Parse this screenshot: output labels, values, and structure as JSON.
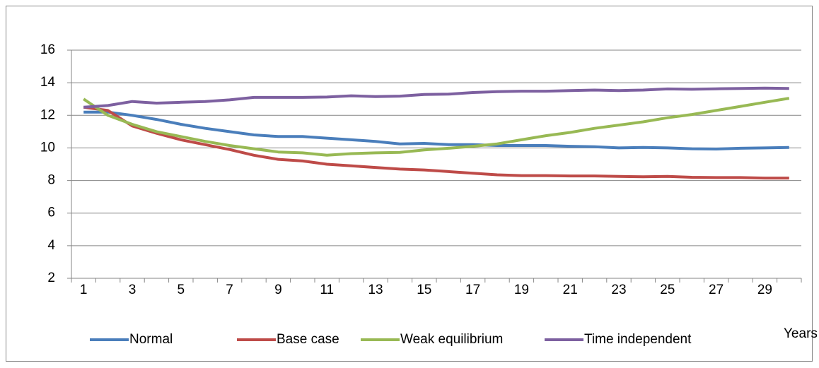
{
  "chart_data": {
    "type": "line",
    "x_label": "Years",
    "categories": [
      1,
      null,
      3,
      null,
      5,
      null,
      7,
      null,
      9,
      null,
      11,
      null,
      13,
      null,
      15,
      null,
      17,
      null,
      19,
      null,
      21,
      null,
      23,
      null,
      25,
      null,
      27,
      null,
      29,
      null
    ],
    "ylim": [
      2,
      16
    ],
    "yticks": [
      2,
      4,
      6,
      8,
      10,
      12,
      14,
      16
    ],
    "grid": true,
    "legend": "bottom",
    "series": [
      {
        "name": "Normal",
        "color": "#4a7ebb",
        "values": [
          12.2,
          12.2,
          12.0,
          11.75,
          11.45,
          11.2,
          11.0,
          10.8,
          10.7,
          10.7,
          10.6,
          10.5,
          10.4,
          10.25,
          10.28,
          10.2,
          10.2,
          10.15,
          10.15,
          10.15,
          10.1,
          10.07,
          10.0,
          10.03,
          10.0,
          9.95,
          9.93,
          9.98,
          10.0,
          10.03
        ]
      },
      {
        "name": "Base case",
        "color": "#be4b48",
        "values": [
          12.5,
          12.3,
          11.35,
          10.9,
          10.5,
          10.2,
          9.9,
          9.55,
          9.3,
          9.2,
          9.0,
          8.9,
          8.8,
          8.7,
          8.65,
          8.55,
          8.45,
          8.35,
          8.3,
          8.3,
          8.28,
          8.28,
          8.25,
          8.23,
          8.25,
          8.2,
          8.18,
          8.18,
          8.15,
          8.15
        ]
      },
      {
        "name": "Weak equilibrium",
        "color": "#98b954",
        "values": [
          13.0,
          12.0,
          11.45,
          11.0,
          10.7,
          10.4,
          10.15,
          9.95,
          9.75,
          9.7,
          9.55,
          9.65,
          9.7,
          9.73,
          9.88,
          9.98,
          10.1,
          10.25,
          10.5,
          10.75,
          10.95,
          11.2,
          11.4,
          11.6,
          11.85,
          12.05,
          12.3,
          12.55,
          12.8,
          13.05
        ]
      },
      {
        "name": "Time independent",
        "color": "#7d60a0",
        "values": [
          12.5,
          12.6,
          12.85,
          12.75,
          12.8,
          12.85,
          12.95,
          13.1,
          13.1,
          13.1,
          13.12,
          13.2,
          13.15,
          13.18,
          13.28,
          13.3,
          13.4,
          13.45,
          13.48,
          13.48,
          13.52,
          13.55,
          13.52,
          13.55,
          13.62,
          13.6,
          13.63,
          13.65,
          13.67,
          13.65
        ]
      }
    ]
  }
}
